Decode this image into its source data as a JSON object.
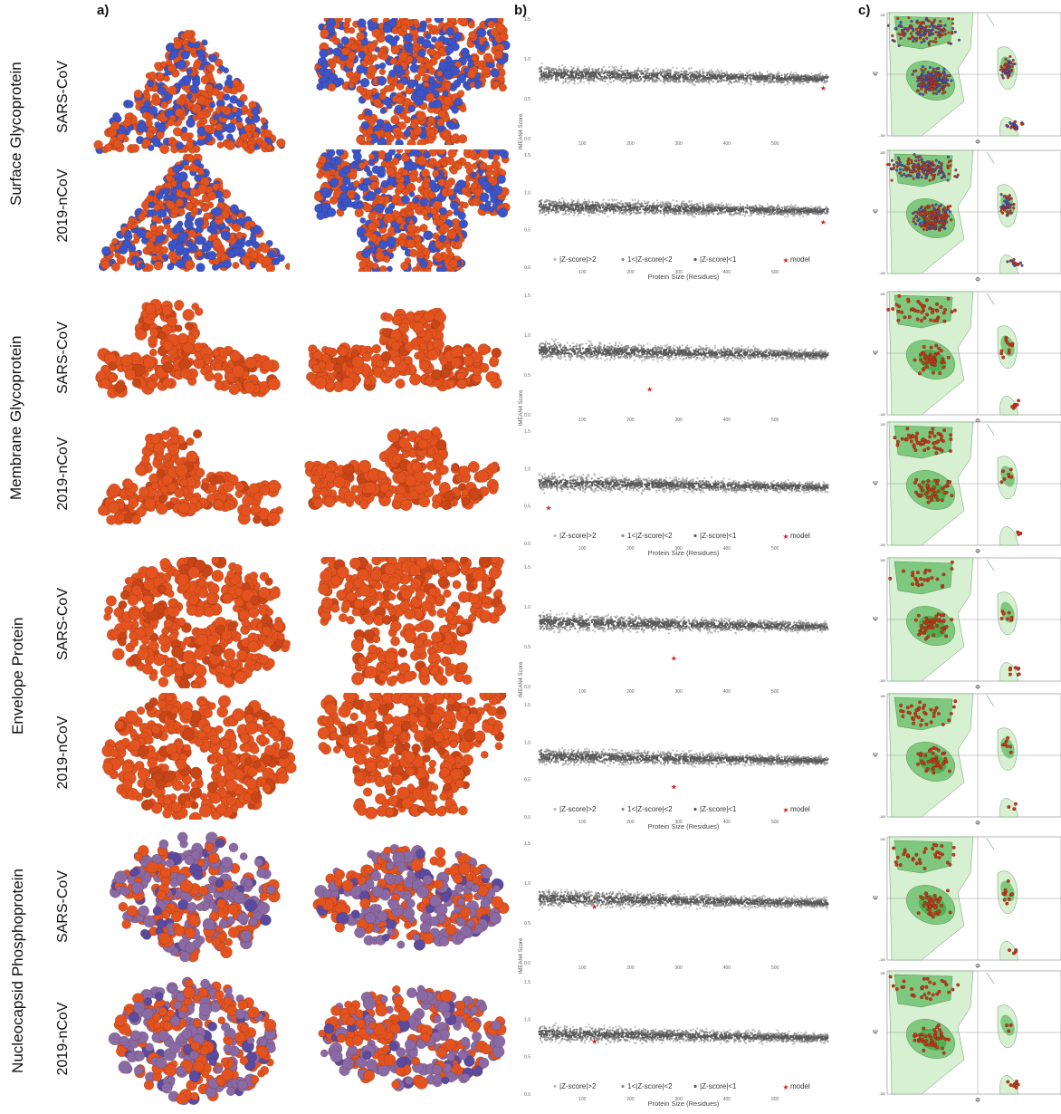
{
  "panels": {
    "a": "a)",
    "b": "b)",
    "c": "c)"
  },
  "colors": {
    "surface_orange": "#e2531f",
    "protein_blue": "#3a55c9",
    "nucleo_purple": "#8a6aa5",
    "scatter_gray": "#5a5a5a",
    "scatter_light": "#bdbdbd",
    "model_red": "#d42020",
    "rama_dark_green": "#4fb04f",
    "rama_light_green": "#d8f0d2"
  },
  "groups": [
    {
      "label": "Surface Glycoprotein",
      "rows": [
        "SARS-CoV",
        "2019-nCoV"
      ]
    },
    {
      "label": "Membrane Glycoprotein",
      "rows": [
        "SARS-CoV",
        "2019-nCoV"
      ]
    },
    {
      "label": "Envelope  Protein",
      "rows": [
        "SARS-CoV",
        "2019-nCoV"
      ]
    },
    {
      "label": "Nucleocapsid Phosphoprotein",
      "rows": [
        "SARS-CoV",
        "2019-nCoV"
      ]
    }
  ],
  "qmean": {
    "ylabel": "Normalized QMEAN4 Score",
    "xlabel": "Protein Size (Residues)",
    "yticks": [
      "1.5",
      "1.0",
      "0.5",
      "0.0"
    ],
    "xticks": [
      "100",
      "200",
      "300",
      "400",
      "500"
    ],
    "legend": [
      "|Z-score|>2",
      "1<|Z-score|<2",
      "|Z-score|<1",
      "model"
    ]
  },
  "rama": {
    "psi": "Ψ",
    "phi": "Φ",
    "tick_top": "180",
    "tick_mid": "0",
    "tick_bottom": "-180"
  },
  "chart_data": [
    {
      "type": "scatter",
      "group": "Surface Glycoprotein",
      "row": "SARS-CoV",
      "ylim": [
        0,
        1.5
      ],
      "model": {
        "x": 600,
        "y": 0.63
      }
    },
    {
      "type": "scatter",
      "group": "Surface Glycoprotein",
      "row": "2019-nCoV",
      "ylim": [
        0,
        1.5
      ],
      "model": {
        "x": 600,
        "y": 0.6
      }
    },
    {
      "type": "scatter",
      "group": "Membrane Glycoprotein",
      "row": "SARS-CoV",
      "ylim": [
        0,
        1.5
      ],
      "model": {
        "x": 240,
        "y": 0.32
      }
    },
    {
      "type": "scatter",
      "group": "Membrane Glycoprotein",
      "row": "2019-nCoV",
      "ylim": [
        0,
        1.5
      ],
      "model": {
        "x": 30,
        "y": 0.47
      }
    },
    {
      "type": "scatter",
      "group": "Envelope  Protein",
      "row": "SARS-CoV",
      "ylim": [
        0,
        1.5
      ],
      "model": {
        "x": 290,
        "y": 0.35
      }
    },
    {
      "type": "scatter",
      "group": "Envelope  Protein",
      "row": "2019-nCoV",
      "ylim": [
        0,
        1.5
      ],
      "model": {
        "x": 290,
        "y": 0.4
      }
    },
    {
      "type": "scatter",
      "group": "Nucleocapsid Phosphoprotein",
      "row": "SARS-CoV",
      "ylim": [
        0,
        1.5
      ],
      "model": {
        "x": 125,
        "y": 0.7
      }
    },
    {
      "type": "scatter",
      "group": "Nucleocapsid Phosphoprotein",
      "row": "2019-nCoV",
      "ylim": [
        0,
        1.5
      ],
      "model": {
        "x": 125,
        "y": 0.7
      }
    }
  ]
}
